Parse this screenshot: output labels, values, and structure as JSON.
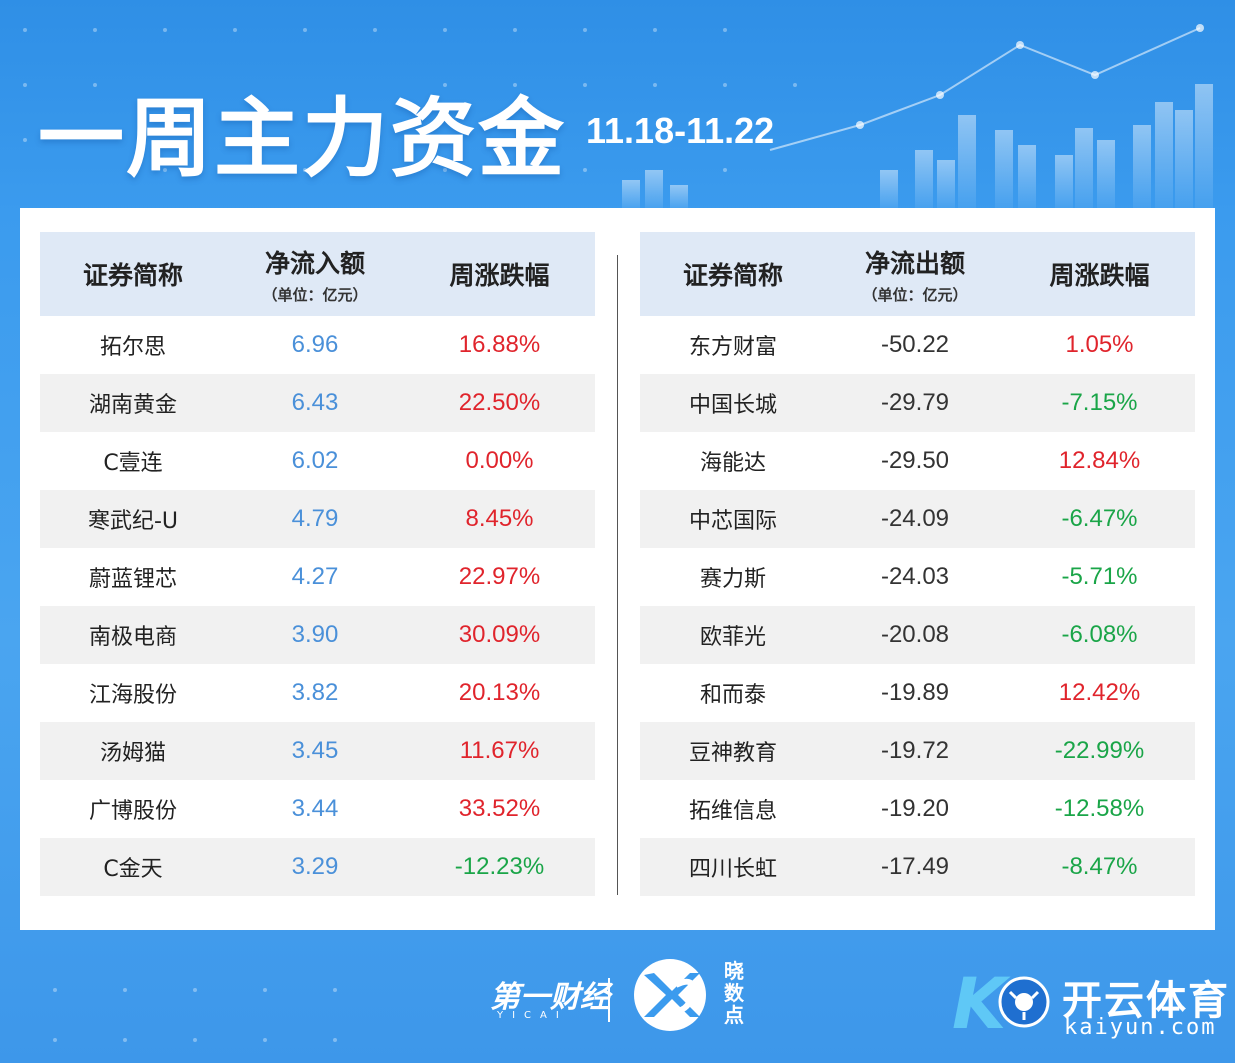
{
  "header": {
    "title": "一周主力资金",
    "date_range": "11.18-11.22"
  },
  "inflow": {
    "headers": {
      "name": "证券简称",
      "value": "净流入额",
      "value_unit": "（单位：亿元）",
      "change": "周涨跌幅"
    },
    "rows": [
      {
        "name": "拓尔思",
        "value": "6.96",
        "change": "16.88%",
        "dir": "up"
      },
      {
        "name": "湖南黄金",
        "value": "6.43",
        "change": "22.50%",
        "dir": "up"
      },
      {
        "name": "C壹连",
        "value": "6.02",
        "change": "0.00%",
        "dir": "up"
      },
      {
        "name": "寒武纪-U",
        "value": "4.79",
        "change": "8.45%",
        "dir": "up"
      },
      {
        "name": "蔚蓝锂芯",
        "value": "4.27",
        "change": "22.97%",
        "dir": "up"
      },
      {
        "name": "南极电商",
        "value": "3.90",
        "change": "30.09%",
        "dir": "up"
      },
      {
        "name": "江海股份",
        "value": "3.82",
        "change": "20.13%",
        "dir": "up"
      },
      {
        "name": "汤姆猫",
        "value": "3.45",
        "change": "11.67%",
        "dir": "up"
      },
      {
        "name": "广博股份",
        "value": "3.44",
        "change": "33.52%",
        "dir": "up"
      },
      {
        "name": "C金天",
        "value": "3.29",
        "change": "-12.23%",
        "dir": "down"
      }
    ]
  },
  "outflow": {
    "headers": {
      "name": "证券简称",
      "value": "净流出额",
      "value_unit": "（单位：亿元）",
      "change": "周涨跌幅"
    },
    "rows": [
      {
        "name": "东方财富",
        "value": "-50.22",
        "change": "1.05%",
        "dir": "up"
      },
      {
        "name": "中国长城",
        "value": "-29.79",
        "change": "-7.15%",
        "dir": "down"
      },
      {
        "name": "海能达",
        "value": "-29.50",
        "change": "12.84%",
        "dir": "up"
      },
      {
        "name": "中芯国际",
        "value": "-24.09",
        "change": "-6.47%",
        "dir": "down"
      },
      {
        "name": "赛力斯",
        "value": "-24.03",
        "change": "-5.71%",
        "dir": "down"
      },
      {
        "name": "欧菲光",
        "value": "-20.08",
        "change": "-6.08%",
        "dir": "down"
      },
      {
        "name": "和而泰",
        "value": "-19.89",
        "change": "12.42%",
        "dir": "up"
      },
      {
        "name": "豆神教育",
        "value": "-19.72",
        "change": "-22.99%",
        "dir": "down"
      },
      {
        "name": "拓维信息",
        "value": "-19.20",
        "change": "-12.58%",
        "dir": "down"
      },
      {
        "name": "四川长虹",
        "value": "-17.49",
        "change": "-8.47%",
        "dir": "down"
      }
    ]
  },
  "footer": {
    "yicai": "第一财经",
    "yicai_sub": "YICAI",
    "xsd": "晓数点",
    "kaiyun_cn": "开云体育",
    "kaiyun_en": "kaiyun.com"
  },
  "colors": {
    "up": "#e0242c",
    "down": "#1aa548",
    "inflow_value": "#4a90d9",
    "header_bg": "#dfe9f6",
    "page_bg": "#3b9bee"
  }
}
